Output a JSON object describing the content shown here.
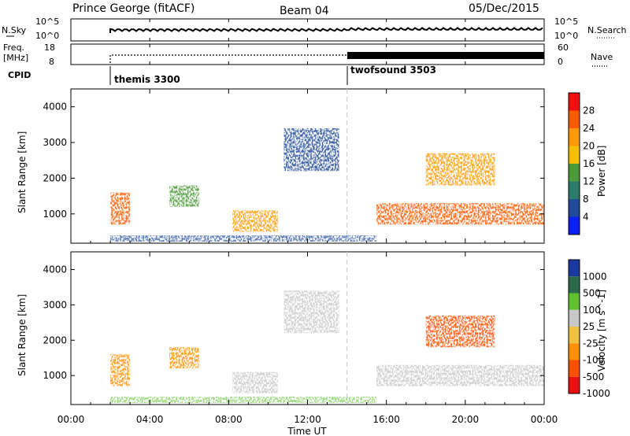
{
  "header": {
    "title": "Prince George (fitACF)",
    "beam": "Beam 04",
    "date": "05/Dec/2015"
  },
  "sky_panel": {
    "left_label": "N.Sky",
    "left_ticks": [
      "10^5",
      "10^0"
    ],
    "right_label": "N.Search",
    "right_ticks": [
      "10^5",
      "10^0"
    ]
  },
  "freq_panel": {
    "left_label_1": "Freq.",
    "left_label_2": "[MHz]",
    "left_ticks": [
      "18",
      "8"
    ],
    "right_label": "Nave",
    "right_ticks": [
      "60",
      "0"
    ]
  },
  "cpid": {
    "label": "CPID",
    "programs": [
      {
        "name": "themis 3300",
        "start_hour": 2.0
      },
      {
        "name": "twofsound 3503",
        "start_hour": 14.0
      }
    ]
  },
  "power_panel": {
    "ylabel": "Slant Range [km]",
    "colorbar_label": "Power [dB]",
    "colorbar_ticks": [
      "28",
      "24",
      "20",
      "16",
      "12",
      "8",
      "4"
    ],
    "colors": [
      "#f01010",
      "#ff5a00",
      "#ff9a00",
      "#f5c000",
      "#4c9a3a",
      "#2d7a6a",
      "#204a9a",
      "#0a20f0"
    ]
  },
  "velocity_panel": {
    "ylabel": "Slant Range [km]",
    "colorbar_label": "Velocity [m s^-1]",
    "colorbar_ticks": [
      "1000",
      "500",
      "100",
      "25",
      "-25",
      "-100",
      "-500",
      "-1000"
    ],
    "colors": [
      "#1a3aa0",
      "#2a6a4a",
      "#60c030",
      "#c8c8c8",
      "#f0c040",
      "#ff9000",
      "#ff5000",
      "#e81010"
    ]
  },
  "x_axis": {
    "label": "Time UT",
    "ticks": [
      "00:00",
      "04:00",
      "08:00",
      "12:00",
      "16:00",
      "20:00",
      "00:00"
    ]
  },
  "y_axis": {
    "ticks": [
      "1000",
      "2000",
      "3000",
      "4000"
    ],
    "range_km": [
      180,
      4500
    ]
  },
  "chart_data": {
    "type": "heatmap",
    "title": "Prince George (fitACF)",
    "xlabel": "Time UT",
    "ylabel": "Slant Range [km]",
    "xlim_hours": [
      0,
      24
    ],
    "ylim_km": [
      180,
      4500
    ],
    "grid": false,
    "mode_change_hour": 14.0,
    "power_regions": [
      {
        "t0": 2.0,
        "t1": 3.0,
        "r0": 700,
        "r1": 1600,
        "power_db": 26
      },
      {
        "t0": 5.0,
        "t1": 6.5,
        "r0": 1200,
        "r1": 1800,
        "power_db": 14
      },
      {
        "t0": 8.2,
        "t1": 10.5,
        "r0": 500,
        "r1": 1100,
        "power_db": 22
      },
      {
        "t0": 10.8,
        "t1": 13.6,
        "r0": 2200,
        "r1": 3400,
        "power_db": 6
      },
      {
        "t0": 15.5,
        "t1": 24.0,
        "r0": 700,
        "r1": 1300,
        "power_db": 24
      },
      {
        "t0": 18.0,
        "t1": 21.5,
        "r0": 1800,
        "r1": 2700,
        "power_db": 20
      }
    ],
    "velocity_regions": [
      {
        "t0": 2.0,
        "t1": 3.0,
        "r0": 700,
        "r1": 1600,
        "velocity_ms": -60
      },
      {
        "t0": 5.0,
        "t1": 6.5,
        "r0": 1200,
        "r1": 1800,
        "velocity_ms": -120
      },
      {
        "t0": 8.2,
        "t1": 10.5,
        "r0": 500,
        "r1": 1100,
        "velocity_ms": 0
      },
      {
        "t0": 10.8,
        "t1": 13.6,
        "r0": 2200,
        "r1": 3400,
        "velocity_ms": 0
      },
      {
        "t0": 15.5,
        "t1": 24.0,
        "r0": 700,
        "r1": 1300,
        "velocity_ms": 0
      },
      {
        "t0": 18.0,
        "t1": 21.5,
        "r0": 1800,
        "r1": 2700,
        "velocity_ms": -300
      }
    ]
  }
}
